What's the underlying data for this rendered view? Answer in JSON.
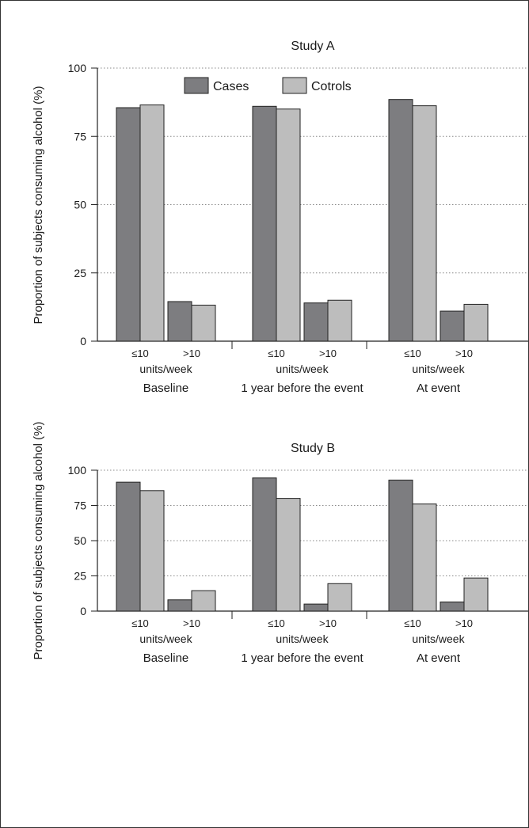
{
  "legend": {
    "cases_label": "Cases",
    "controls_label": "Cotrols"
  },
  "colors": {
    "cases": "#7d7d80",
    "controls": "#bdbdbd",
    "outline": "#222222",
    "grid": "#888888"
  },
  "chart_data": [
    {
      "type": "bar",
      "title": "Study A",
      "ylabel": "Proportion of subjects consuming alcohol (%)",
      "ylim": [
        0,
        100
      ],
      "yticks": [
        "0",
        "25",
        "50",
        "75",
        "100"
      ],
      "groups": [
        "Baseline",
        "1 year before the event",
        "At event"
      ],
      "subcategories": [
        "≤10",
        ">10"
      ],
      "unit_label": "units/week",
      "series": [
        {
          "name": "Cases",
          "values": [
            [
              85.5,
              14.5
            ],
            [
              86,
              14
            ],
            [
              88.5,
              11
            ]
          ]
        },
        {
          "name": "Cotrols",
          "values": [
            [
              86.5,
              13.2
            ],
            [
              85,
              15
            ],
            [
              86.2,
              13.5
            ]
          ]
        }
      ],
      "grid": "horizontal dotted",
      "legend_position": "top-center"
    },
    {
      "type": "bar",
      "title": "Study B",
      "ylabel": "Proportion of subjects consuming alcohol (%)",
      "ylim": [
        0,
        100
      ],
      "yticks": [
        "0",
        "25",
        "50",
        "75",
        "100"
      ],
      "groups": [
        "Baseline",
        "1 year before the event",
        "At event"
      ],
      "subcategories": [
        "≤10",
        ">10"
      ],
      "unit_label": "units/week",
      "series": [
        {
          "name": "Cases",
          "values": [
            [
              91.5,
              8
            ],
            [
              94.5,
              5
            ],
            [
              93,
              6.5
            ]
          ]
        },
        {
          "name": "Cotrols",
          "values": [
            [
              85.5,
              14.5
            ],
            [
              80,
              19.5
            ],
            [
              76,
              23.5
            ]
          ]
        }
      ],
      "grid": "horizontal dotted"
    }
  ]
}
